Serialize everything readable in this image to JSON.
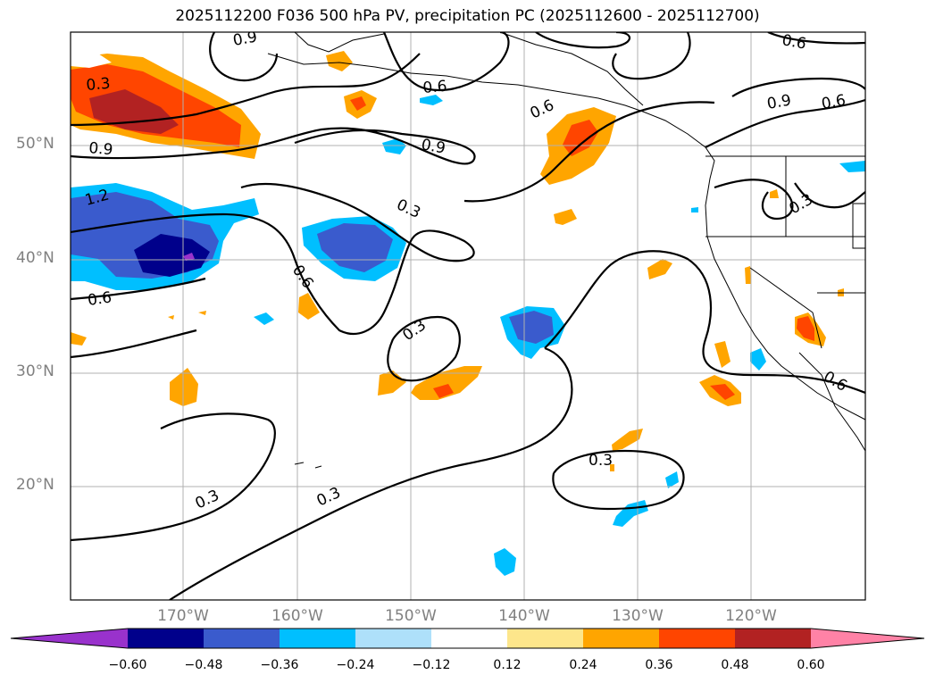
{
  "title": "2025112200 F036 500 hPa PV, precipitation PC (2025112600 - 2025112700)",
  "latitude_labels": [
    "50°N",
    "40°N",
    "30°N",
    "20°N"
  ],
  "longitude_labels": [
    "170°W",
    "160°W",
    "150°W",
    "140°W",
    "130°W",
    "120°W"
  ],
  "contour_labels": [
    "0.9",
    "0.3",
    "0.9",
    "1.2",
    "0.6",
    "0.6",
    "0.9",
    "0.6",
    "0.3",
    "0.6",
    "0.3",
    "0.3",
    "0.3",
    "0.3",
    "0.9",
    "0.6",
    "0.3",
    "0.6",
    "0.6"
  ],
  "colorbar": {
    "ticks": [
      "−0.60",
      "−0.48",
      "−0.36",
      "−0.24",
      "−0.12",
      "0.12",
      "0.24",
      "0.36",
      "0.48",
      "0.60"
    ],
    "colors": [
      "#9932cc",
      "#00008b",
      "#3a5bcd",
      "#00bfff",
      "#aee0fa",
      "#ffffff",
      "#fde68b",
      "#ffa500",
      "#ff4500",
      "#b22222",
      "#ff82a6"
    ]
  }
}
